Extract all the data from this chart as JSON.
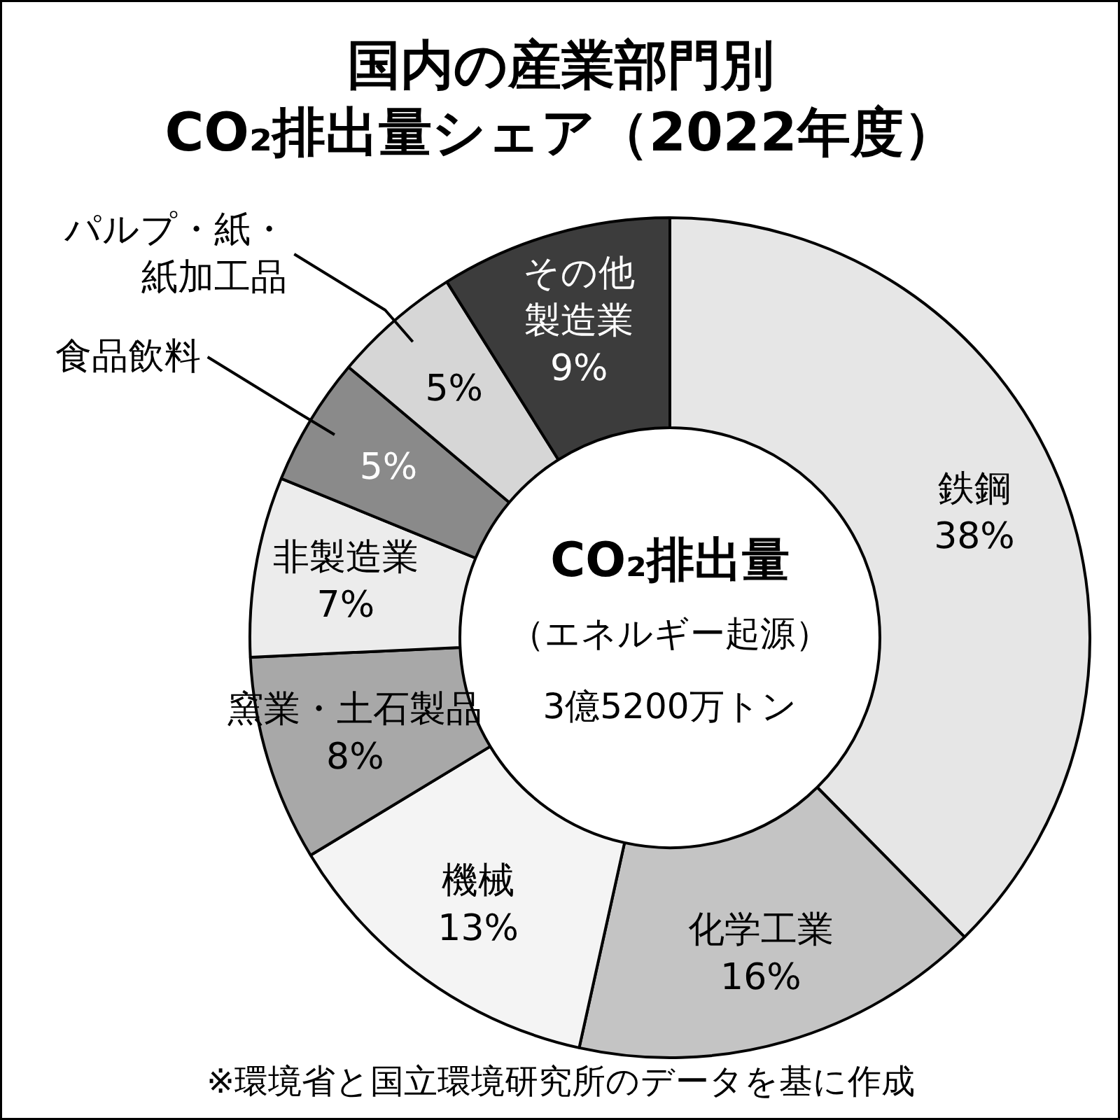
{
  "chart_data": {
    "type": "donut",
    "title": "国内の産業部門別\nCO₂排出量シェア（2022年度）",
    "categories": [
      "鉄鋼",
      "化学工業",
      "機械",
      "窯業・土石製品",
      "非製造業",
      "食品飲料",
      "パルプ・紙・紙加工品",
      "その他製造業"
    ],
    "values": [
      38,
      16,
      13,
      8,
      7,
      5,
      5,
      9
    ],
    "colors": [
      "#e6e6e6",
      "#c4c4c4",
      "#f4f4f4",
      "#a8a8a8",
      "#ececec",
      "#8a8a8a",
      "#d6d6d6",
      "#3c3c3c"
    ],
    "value_labels": [
      "38%",
      "16%",
      "13%",
      "8%",
      "7%",
      "5%",
      "5%",
      "9%"
    ],
    "annotations": [
      "CO₂排出量",
      "（エネルギー起源）",
      "3億5200万トン",
      "※環境省と国立環境研究所のデータを基に作成"
    ]
  }
}
